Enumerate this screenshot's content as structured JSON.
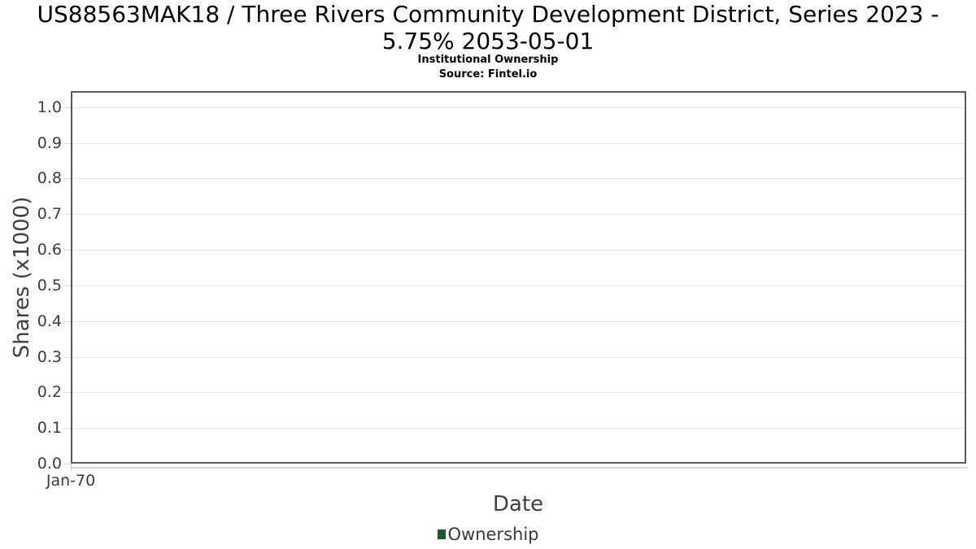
{
  "header": {
    "title": "US88563MAK18 / Three Rivers Community Development District, Series 2023 - 5.75% 2053-05-01",
    "subtitle": "Institutional Ownership",
    "source": "Source: Fintel.io"
  },
  "chart_data": {
    "type": "bar",
    "title": "US88563MAK18 / Three Rivers Community Development District, Series 2023 - 5.75% 2053-05-01",
    "subtitle": "Institutional Ownership",
    "source": "Source: Fintel.io",
    "xlabel": "Date",
    "ylabel": "Shares (x1000)",
    "x_tick_labels": [
      "Jan-70"
    ],
    "yticks": [
      "0.0",
      "0.1",
      "0.2",
      "0.3",
      "0.4",
      "0.5",
      "0.6",
      "0.7",
      "0.8",
      "0.9",
      "1.0"
    ],
    "ylim": [
      0,
      1.045
    ],
    "grid": "horizontal",
    "legend_position": "bottom-center",
    "series": [
      {
        "name": "Ownership",
        "color": "#1f5731",
        "values": []
      }
    ]
  }
}
